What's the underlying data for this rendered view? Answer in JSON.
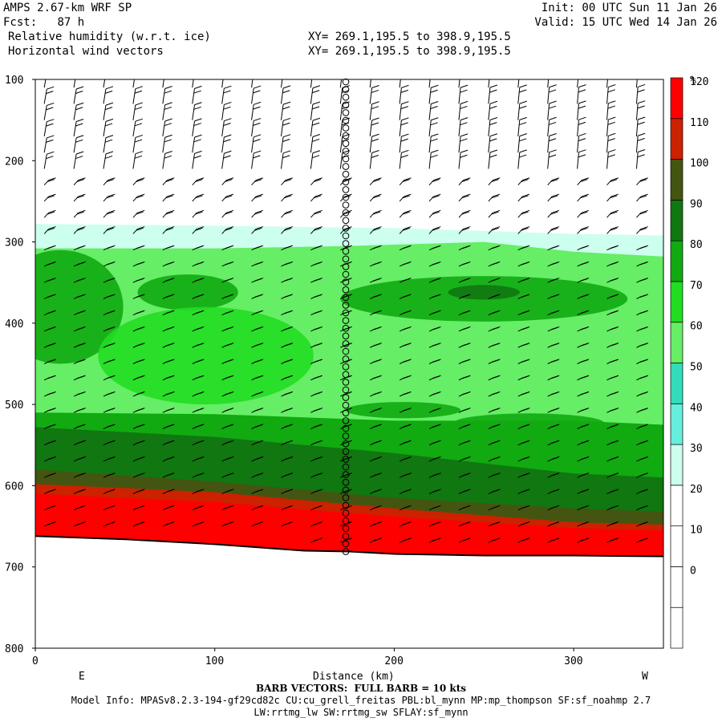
{
  "header": {
    "model": "AMPS 2.67-km WRF SP",
    "fcst_label": "Fcst:",
    "fcst_value": "87 h",
    "field1": "Relative humidity (w.r.t. ice)",
    "field2": "Horizontal wind vectors",
    "init": "Init: 00 UTC Sun 11 Jan 26",
    "valid": "Valid: 15 UTC Wed 14 Jan 26",
    "xy1": "XY= 269.1,195.5 to 398.9,195.5",
    "xy2": "XY= 269.1,195.5 to 398.9,195.5"
  },
  "footer": {
    "barb_note": "BARB VECTORS:  FULL BARB = 10 kts",
    "model_info": "Model Info: MPASv8.2.3-194-gf29cd82c CU:cu_grell_freitas PBL:bl_mynn MP:mp_thompson SF:sf_noahmp 2.7",
    "model_info2": "LW:rrtmg_lw SW:rrtmg_sw SFLAY:sf_mynn"
  },
  "chart_data": {
    "type": "heatmap",
    "title": "Relative humidity (w.r.t. ice)",
    "xlabel": "Distance (km)",
    "ylabel": "",
    "xlim": [
      0,
      350
    ],
    "ylim": [
      800,
      100
    ],
    "x_ticks": [
      0,
      100,
      200,
      300
    ],
    "y_ticks": [
      100,
      200,
      300,
      400,
      500,
      600,
      700,
      800
    ],
    "x_end_labels": {
      "left": "E",
      "right": "W"
    },
    "colorbar": {
      "unit": "%",
      "levels": [
        -10,
        0,
        10,
        20,
        30,
        40,
        50,
        60,
        70,
        80,
        90,
        100,
        110,
        120,
        130
      ],
      "tick_labels": [
        "0",
        "10",
        "20",
        "30",
        "40",
        "50",
        "60",
        "70",
        "80",
        "90",
        "100",
        "110",
        "120"
      ],
      "colors": [
        "#ffffff",
        "#ffffff",
        "#ffffff",
        "#ffffff",
        "#ccffee",
        "#66eedd",
        "#33ddbb",
        "#66ee66",
        "#22dd22",
        "#11aa11",
        "#117711",
        "#445511",
        "#cc2200",
        "#ff0000"
      ]
    },
    "rh_bands": [
      {
        "rh": 35,
        "top": [
          [
            0,
            278
          ],
          [
            100,
            280
          ],
          [
            200,
            283
          ],
          [
            300,
            290
          ],
          [
            350,
            292
          ]
        ]
      },
      {
        "rh": 65,
        "top": [
          [
            0,
            308
          ],
          [
            100,
            308
          ],
          [
            175,
            305
          ],
          [
            250,
            300
          ],
          [
            300,
            312
          ],
          [
            350,
            318
          ]
        ]
      },
      {
        "rh": 85,
        "top": [
          [
            0,
            510
          ],
          [
            100,
            512
          ],
          [
            200,
            520
          ],
          [
            300,
            520
          ],
          [
            350,
            525
          ]
        ]
      },
      {
        "rh": 95,
        "top": [
          [
            0,
            528
          ],
          [
            100,
            540
          ],
          [
            200,
            560
          ],
          [
            300,
            585
          ],
          [
            350,
            590
          ]
        ]
      },
      {
        "rh": 105,
        "top": [
          [
            0,
            580
          ],
          [
            100,
            595
          ],
          [
            200,
            615
          ],
          [
            300,
            628
          ],
          [
            350,
            632
          ]
        ]
      },
      {
        "rh": 115,
        "top": [
          [
            0,
            598
          ],
          [
            100,
            608
          ],
          [
            200,
            628
          ],
          [
            300,
            645
          ],
          [
            350,
            648
          ]
        ]
      },
      {
        "rh": 125,
        "top": [
          [
            0,
            610
          ],
          [
            100,
            620
          ],
          [
            200,
            638
          ],
          [
            300,
            652
          ],
          [
            350,
            655
          ]
        ]
      }
    ],
    "rh_patches": [
      {
        "rh": 85,
        "cx": 85,
        "cy": 362,
        "rx": 28,
        "ry": 22
      },
      {
        "rh": 85,
        "cx": 250,
        "cy": 370,
        "rx": 80,
        "ry": 28
      },
      {
        "rh": 95,
        "cx": 250,
        "cy": 362,
        "rx": 20,
        "ry": 9
      },
      {
        "rh": 85,
        "cx": 275,
        "cy": 523,
        "rx": 42,
        "ry": 12
      },
      {
        "rh": 85,
        "cx": 205,
        "cy": 507,
        "rx": 32,
        "ry": 10
      },
      {
        "rh": 85,
        "cx": 14,
        "cy": 380,
        "rx": 35,
        "ry": 70
      },
      {
        "rh": 75,
        "cx": 95,
        "cy": 440,
        "rx": 60,
        "ry": 60
      }
    ],
    "terrain_surface": [
      [
        0,
        662
      ],
      [
        50,
        666
      ],
      [
        100,
        672
      ],
      [
        150,
        680
      ],
      [
        175,
        681
      ],
      [
        200,
        684
      ],
      [
        250,
        686
      ],
      [
        300,
        686
      ],
      [
        350,
        687
      ]
    ],
    "station_x": 173,
    "station_marker_levels": [
      100,
      690
    ]
  }
}
